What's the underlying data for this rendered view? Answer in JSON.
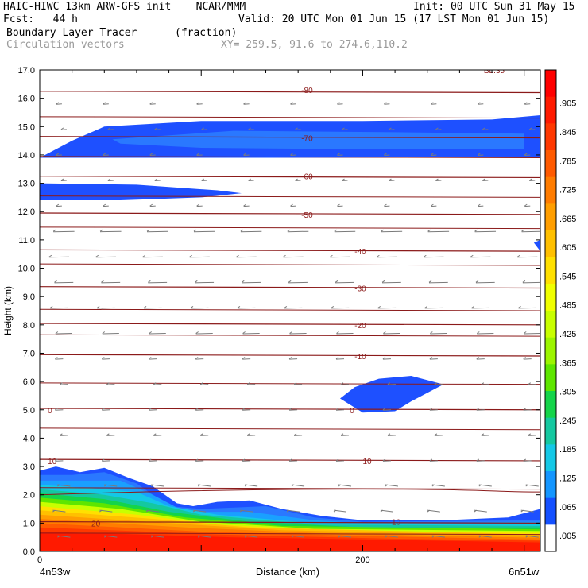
{
  "header": {
    "line1_left": "HAIC-HIWC 13km ARW-GFS init    NCAR/MMM",
    "init": "Init: 00 UTC Sun 31 May 15",
    "fcst": "Fcst:   44 h",
    "valid": "Valid: 20 UTC Mon 01 Jun 15 (17 LST Mon 01 Jun 15)",
    "field": "Boundary Layer Tracer",
    "units": "(fraction)",
    "vectors": "Circulation vectors",
    "xy": "XY= 259.5, 91.6 to 274.6,110.2"
  },
  "axes": {
    "ylabel": "Height (km)",
    "xlabel": "Distance (km)",
    "x_left_label": "4n53w",
    "x_right_label": "6n51w",
    "yticks": [
      "0.0",
      "1.0",
      "2.0",
      "3.0",
      "4.0",
      "5.0",
      "6.0",
      "7.0",
      "8.0",
      "9.0",
      "10.0",
      "11.0",
      "12.0",
      "13.0",
      "14.0",
      "15.0",
      "16.0",
      "17.0"
    ],
    "xticks": [
      "0",
      "200"
    ]
  },
  "colorbar": {
    "labels": [
      "-",
      ".905",
      ".845",
      ".785",
      ".725",
      ".665",
      ".605",
      ".545",
      ".485",
      ".425",
      ".365",
      ".305",
      ".245",
      ".185",
      ".125",
      ".065",
      ".005"
    ],
    "colors": [
      "#ff0000",
      "#ff1a00",
      "#ff3800",
      "#ff5a00",
      "#ff7c00",
      "#ff9e00",
      "#ffc000",
      "#ffe000",
      "#f0ff00",
      "#c8ff00",
      "#9cf500",
      "#5ee600",
      "#14d44a",
      "#14c8a0",
      "#14c8e6",
      "#1496ff",
      "#1450ff",
      "#ffffff"
    ]
  },
  "contours": {
    "isotherm_labels": [
      "-80",
      "-70",
      "-60",
      "-50",
      "-40",
      "-30",
      "-20",
      "-10",
      "0",
      "0",
      "10",
      "10",
      "20",
      "10",
      "BL:35"
    ]
  },
  "chart_data": {
    "type": "heatmap",
    "title": "Boundary Layer Tracer",
    "xlabel": "Distance (km)",
    "ylabel": "Height (km)",
    "xlim": [
      0,
      310
    ],
    "ylim": [
      0,
      17
    ],
    "yticks": [
      0,
      1,
      2,
      3,
      4,
      5,
      6,
      7,
      8,
      9,
      10,
      11,
      12,
      13,
      14,
      15,
      16,
      17
    ],
    "xticks": [
      0,
      200
    ],
    "colorbar_levels": [
      0.005,
      0.065,
      0.125,
      0.185,
      0.245,
      0.305,
      0.365,
      0.425,
      0.485,
      0.545,
      0.605,
      0.665,
      0.725,
      0.785,
      0.845,
      0.905
    ],
    "isotherms_degC": [
      {
        "temp": -80,
        "height_km": 16.2
      },
      {
        "temp": -70,
        "height_km": 14.6
      },
      {
        "temp": -60,
        "height_km": 13.2
      },
      {
        "temp": -50,
        "height_km": 11.9
      },
      {
        "temp": -40,
        "height_km": 10.6
      },
      {
        "temp": -30,
        "height_km": 9.3
      },
      {
        "temp": -20,
        "height_km": 8.0
      },
      {
        "temp": -10,
        "height_km": 6.9
      },
      {
        "temp": 0,
        "height_km": 5.0
      },
      {
        "temp": 10,
        "height_km": 3.2
      },
      {
        "temp": 20,
        "height_km": 1.0
      }
    ],
    "features": [
      {
        "name": "upper tracer layer",
        "x_range_km": [
          0,
          310
        ],
        "height_range_km": [
          13.9,
          15.3
        ],
        "value": 0.065
      },
      {
        "name": "mid-upper tracer layer",
        "x_range_km": [
          0,
          125
        ],
        "height_range_km": [
          12.4,
          13.0
        ],
        "value": 0.065
      },
      {
        "name": "mid-level tracer pocket",
        "x_range_km": [
          185,
          250
        ],
        "height_range_km": [
          4.9,
          6.2
        ],
        "value": 0.065
      },
      {
        "name": "boundary layer",
        "x_range_km": [
          0,
          310
        ],
        "height_range_km": [
          0.0,
          2.9
        ],
        "max_value": 0.905
      }
    ],
    "grid": false,
    "legend": "right"
  }
}
